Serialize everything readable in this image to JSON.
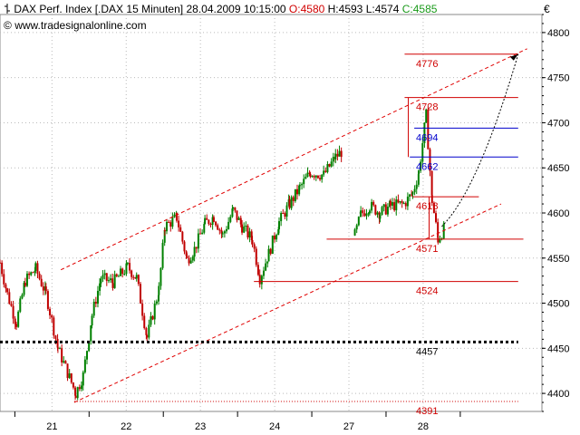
{
  "header": {
    "icon": "candlestick-icon",
    "instrument": "DAX Perf. Index [.DAX",
    "interval": "15 Minuten]",
    "datetime": "28.04.2009 10:15:00",
    "open_label": "O:4580",
    "high_label": "H:4593",
    "low_label": "L:4574",
    "close_label": "C:4585",
    "source": "www.tradesignalonline.com",
    "currency": "€"
  },
  "colors": {
    "bull": "#008000",
    "bear": "#c00000",
    "support": "#d00000",
    "resistance_blue": "#0000cc",
    "channel": "#e00000",
    "grid": "#bbbbbb",
    "level_line": "#000000"
  },
  "chart_data": {
    "type": "candlestick",
    "ylim": [
      4380,
      4820
    ],
    "y_ticks": [
      4400,
      4450,
      4500,
      4550,
      4600,
      4650,
      4700,
      4750,
      4800
    ],
    "x_ticks": [
      {
        "label": "21",
        "pos": 0.7
      },
      {
        "label": "22",
        "pos": 1.7
      },
      {
        "label": "23",
        "pos": 2.7
      },
      {
        "label": "24",
        "pos": 3.7
      },
      {
        "label": "27",
        "pos": 4.7
      },
      {
        "label": "28",
        "pos": 5.7
      }
    ],
    "xlim": [
      0,
      7.3
    ],
    "series_anchors": [
      [
        0.0,
        4545
      ],
      [
        0.1,
        4510
      ],
      [
        0.22,
        4478
      ],
      [
        0.34,
        4525
      ],
      [
        0.48,
        4538
      ],
      [
        0.62,
        4510
      ],
      [
        0.78,
        4450
      ],
      [
        1.02,
        4400
      ],
      [
        1.12,
        4420
      ],
      [
        1.24,
        4487
      ],
      [
        1.36,
        4528
      ],
      [
        1.52,
        4523
      ],
      [
        1.72,
        4540
      ],
      [
        1.84,
        4528
      ],
      [
        1.98,
        4462
      ],
      [
        2.14,
        4515
      ],
      [
        2.22,
        4585
      ],
      [
        2.38,
        4595
      ],
      [
        2.52,
        4548
      ],
      [
        2.62,
        4560
      ],
      [
        2.76,
        4588
      ],
      [
        2.88,
        4596
      ],
      [
        3.0,
        4575
      ],
      [
        3.14,
        4603
      ],
      [
        3.26,
        4585
      ],
      [
        3.4,
        4570
      ],
      [
        3.5,
        4528
      ],
      [
        3.62,
        4555
      ],
      [
        3.76,
        4590
      ],
      [
        3.9,
        4610
      ],
      [
        4.04,
        4628
      ],
      [
        4.18,
        4645
      ],
      [
        4.36,
        4642
      ],
      [
        4.52,
        4662
      ],
      [
        4.6,
        4668
      ],
      [
        4.78,
        4575
      ],
      [
        4.86,
        4598
      ],
      [
        4.98,
        4608
      ],
      [
        5.12,
        4600
      ],
      [
        5.26,
        4608
      ],
      [
        5.44,
        4610
      ],
      [
        5.56,
        4622
      ],
      [
        5.64,
        4645
      ],
      [
        5.74,
        4708
      ],
      [
        5.82,
        4614
      ],
      [
        5.9,
        4571
      ],
      [
        6.0,
        4585
      ]
    ],
    "gaps_after": [
      4.6
    ],
    "levels": [
      {
        "label": "4776",
        "value": 4776,
        "x1": 5.45,
        "x2": 6.98,
        "color": "#d00000"
      },
      {
        "label": "4728",
        "value": 4728,
        "x1": 5.45,
        "x2": 6.98,
        "color": "#d00000"
      },
      {
        "label": "4694",
        "value": 4694,
        "x1": 5.58,
        "x2": 6.98,
        "color": "#0000cc"
      },
      {
        "label": "4662",
        "value": 4662,
        "x1": 5.52,
        "x2": 6.98,
        "color": "#0000cc"
      },
      {
        "label": "4618",
        "value": 4618,
        "x1": 5.56,
        "x2": 6.45,
        "color": "#d00000"
      },
      {
        "label": "4571",
        "value": 4571,
        "x1": 4.4,
        "x2": 7.05,
        "color": "#d00000"
      },
      {
        "label": "4524",
        "value": 4524,
        "x1": 3.42,
        "x2": 6.98,
        "color": "#d00000"
      },
      {
        "label": "4457",
        "value": 4457,
        "x1": 0.0,
        "x2": 6.98,
        "color": "#000000"
      },
      {
        "label": "4391",
        "value": 4391,
        "x1": 1.0,
        "x2": 6.98,
        "color": "#d00000"
      }
    ],
    "channel_upper": [
      [
        0.82,
        4537
      ],
      [
        7.1,
        4782
      ]
    ],
    "channel_lower": [
      [
        1.0,
        4390
      ],
      [
        6.75,
        4610
      ]
    ],
    "forecast_arrow": [
      [
        5.95,
        4585
      ],
      [
        6.98,
        4776
      ]
    ]
  }
}
